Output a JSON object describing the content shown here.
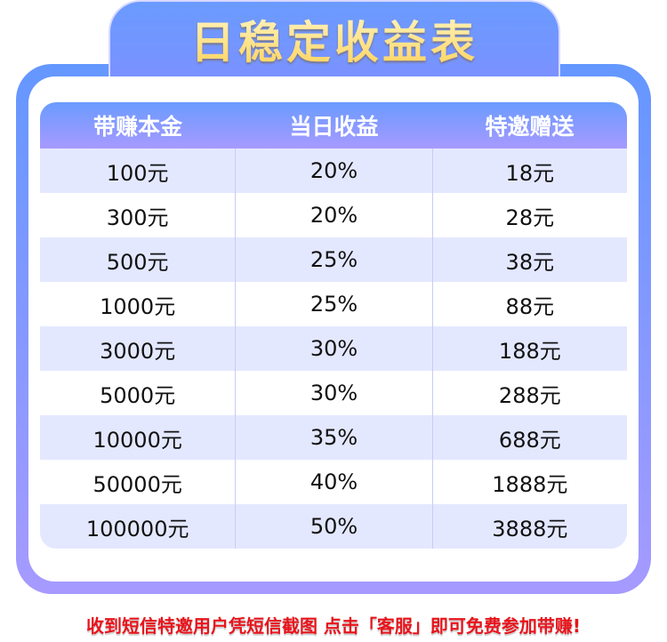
{
  "title": "日稳定收益表",
  "colors": {
    "header_gradient": [
      "#6a9bff",
      "#a79aff"
    ],
    "row_alt": "#e4e8ff",
    "footer": "#e8141c",
    "title": "#ffd25a"
  },
  "table": {
    "headers": [
      "带赚本金",
      "当日收益",
      "特邀赠送"
    ],
    "rows": [
      [
        "100元",
        "20%",
        "18元"
      ],
      [
        "300元",
        "20%",
        "28元"
      ],
      [
        "500元",
        "25%",
        "38元"
      ],
      [
        "1000元",
        "25%",
        "88元"
      ],
      [
        "3000元",
        "30%",
        "188元"
      ],
      [
        "5000元",
        "30%",
        "288元"
      ],
      [
        "10000元",
        "35%",
        "688元"
      ],
      [
        "50000元",
        "40%",
        "1888元"
      ],
      [
        "100000元",
        "50%",
        "3888元"
      ]
    ]
  },
  "footer": "收到短信特邀用户凭短信截图 点击「客服」即可免费参加带赚!"
}
